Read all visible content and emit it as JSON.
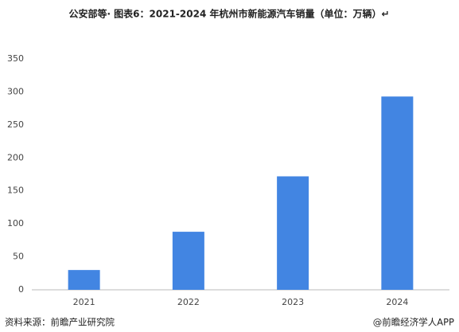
{
  "chart_data": {
    "type": "bar",
    "title": "公安部等· 图表6：2021-2024 年杭州市新能源汽车销量（单位：万辆）↵",
    "categories": [
      "2021",
      "2022",
      "2023",
      "2024"
    ],
    "values": [
      30,
      88,
      172,
      293
    ],
    "color": "#4285e2",
    "ylim": [
      0,
      350
    ],
    "yticks": [
      0,
      50,
      100,
      150,
      200,
      250,
      300,
      350
    ],
    "grid": false,
    "source": "资料来源：前瞻产业研究院",
    "credit": "@前瞻经济学人APP"
  }
}
